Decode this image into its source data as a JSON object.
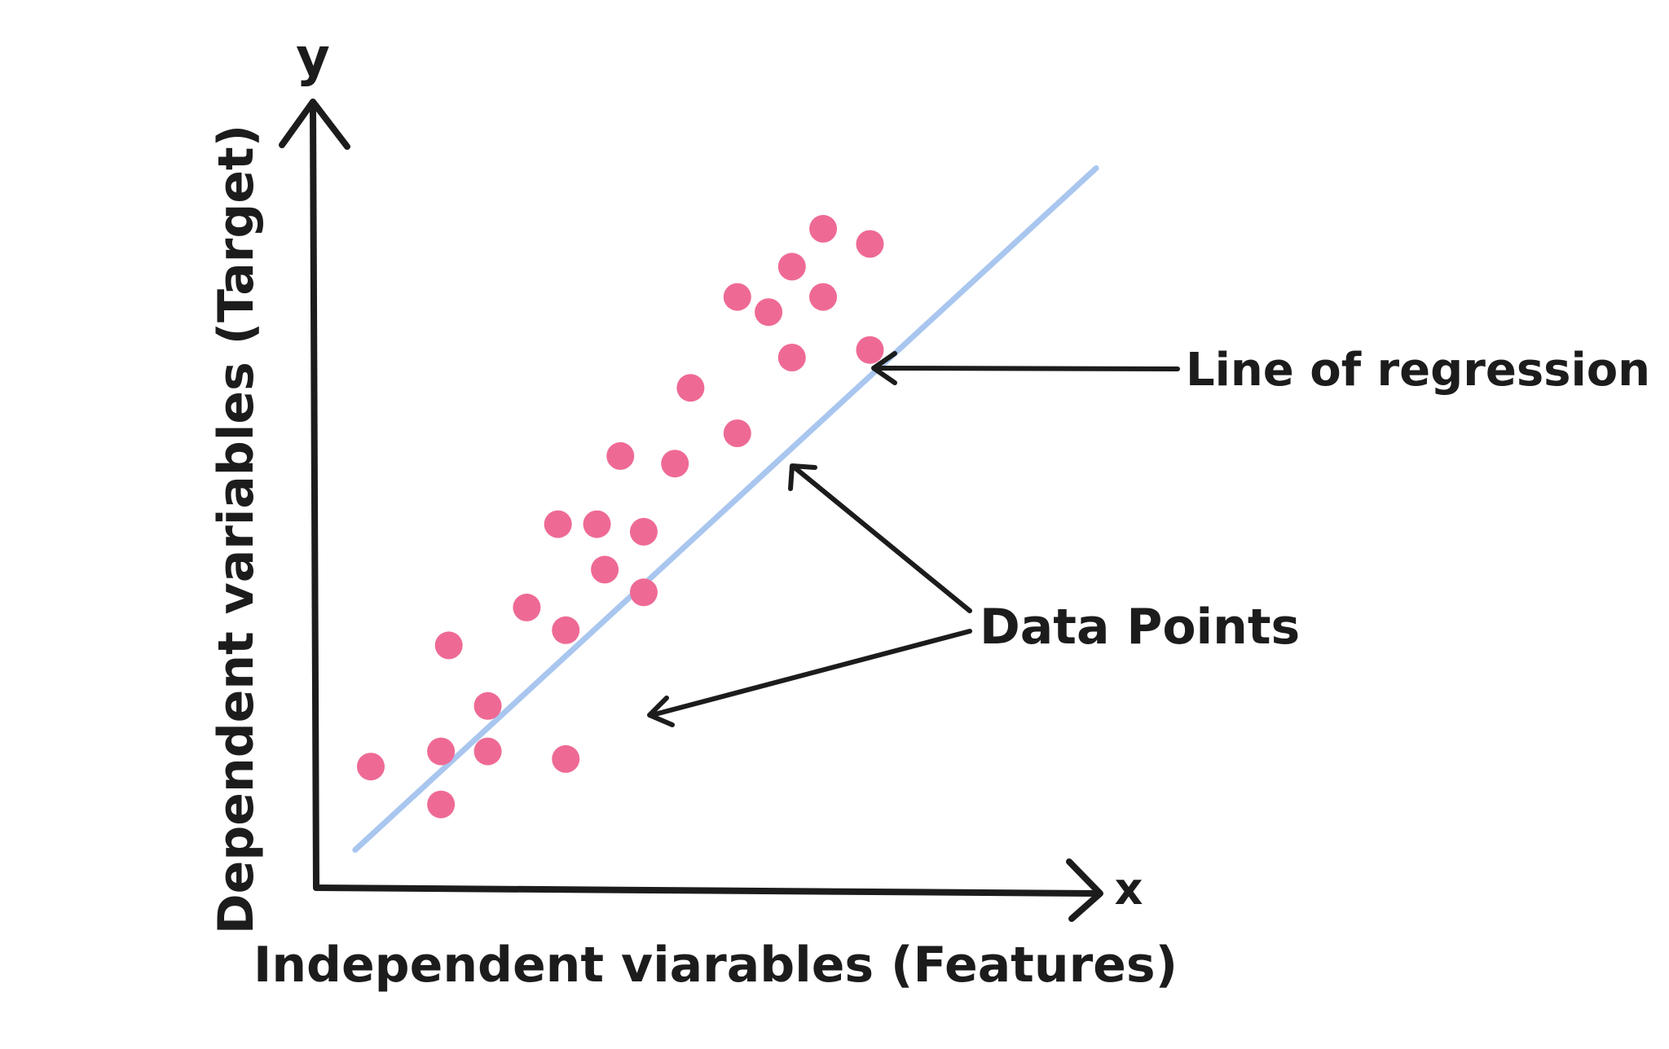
{
  "diagram": {
    "y_axis_letter": "y",
    "x_axis_letter": "x",
    "y_axis_label": "Dependent variables (Target)",
    "x_axis_label": "Independent viarables (Features)",
    "regression_label": "Line of regression",
    "points_label": "Data Points"
  },
  "colors": {
    "axis": "#1c1c1c",
    "point": "#ee6a94",
    "regression_line": "#a9c6ef",
    "background": "#ffffff"
  },
  "chart_data": {
    "type": "scatter",
    "x_range": [
      0,
      100
    ],
    "y_range": [
      0,
      100
    ],
    "points": [
      {
        "x": 7,
        "y": 16
      },
      {
        "x": 16,
        "y": 11
      },
      {
        "x": 16,
        "y": 18
      },
      {
        "x": 17,
        "y": 32
      },
      {
        "x": 22,
        "y": 24
      },
      {
        "x": 22,
        "y": 18
      },
      {
        "x": 27,
        "y": 37
      },
      {
        "x": 31,
        "y": 48
      },
      {
        "x": 32,
        "y": 17
      },
      {
        "x": 32,
        "y": 34
      },
      {
        "x": 36,
        "y": 48
      },
      {
        "x": 37,
        "y": 42
      },
      {
        "x": 39,
        "y": 57
      },
      {
        "x": 42,
        "y": 47
      },
      {
        "x": 42,
        "y": 39
      },
      {
        "x": 46,
        "y": 56
      },
      {
        "x": 48,
        "y": 66
      },
      {
        "x": 54,
        "y": 60
      },
      {
        "x": 54,
        "y": 78
      },
      {
        "x": 58,
        "y": 76
      },
      {
        "x": 61,
        "y": 70
      },
      {
        "x": 61,
        "y": 82
      },
      {
        "x": 65,
        "y": 87
      },
      {
        "x": 65,
        "y": 78
      },
      {
        "x": 71,
        "y": 85
      },
      {
        "x": 71,
        "y": 71
      }
    ],
    "regression_line": {
      "x": [
        5,
        100
      ],
      "y": [
        5,
        95
      ]
    },
    "grid": false,
    "legend": "none"
  }
}
